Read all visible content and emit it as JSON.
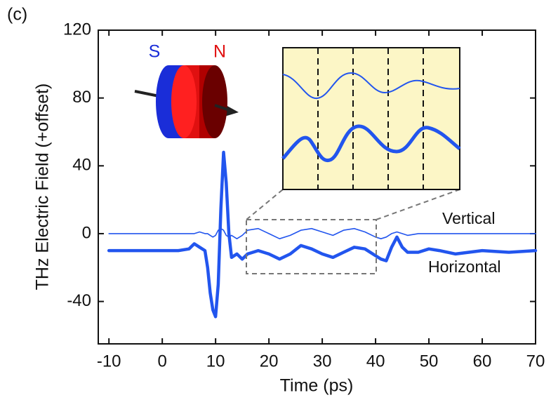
{
  "chart_data": {
    "type": "line",
    "panel_label": "(c)",
    "x_label": "Time (ps)",
    "y_label": "THz Electric Field (+offset)",
    "magnet_labels": [
      "S",
      "N"
    ],
    "x": [
      -10,
      -5,
      0,
      3,
      5,
      6,
      7,
      8,
      8.5,
      9,
      9.5,
      10,
      10.5,
      11,
      11.5,
      12,
      12.5,
      13,
      14,
      15,
      16,
      18,
      20,
      22,
      24,
      26,
      28,
      30,
      32,
      34,
      36,
      38,
      40,
      41,
      42,
      43,
      44,
      45,
      46,
      48,
      50,
      52,
      55,
      60,
      65,
      70
    ],
    "series": [
      {
        "name": "Vertical",
        "color": "#2255ee",
        "width": 1.6,
        "values": [
          0,
          0,
          0,
          0,
          0,
          0,
          1,
          0,
          0,
          -1,
          -2,
          -1,
          2,
          3,
          2,
          -1,
          -2,
          -1,
          -3,
          -1,
          2,
          3,
          0,
          -3,
          -1,
          2,
          3,
          1,
          -1,
          2,
          3,
          1,
          -2,
          -3,
          -2,
          0,
          1,
          0,
          -1,
          0,
          0,
          0,
          0,
          0,
          0,
          0
        ]
      },
      {
        "name": "Horizontal",
        "color": "#2255ee",
        "width": 4.5,
        "values": [
          -10,
          -10,
          -10,
          -10,
          -9,
          -6,
          -8,
          -10,
          -20,
          -35,
          -45,
          -49,
          -30,
          15,
          48,
          30,
          0,
          -14,
          -12,
          -15,
          -12,
          -10,
          -12,
          -15,
          -12,
          -7,
          -9,
          -12,
          -14,
          -11,
          -8,
          -9,
          -13,
          -15,
          -16,
          -8,
          -2,
          -8,
          -11,
          -11,
          -9,
          -10,
          -12,
          -10,
          -11,
          -10
        ]
      }
    ],
    "xlim": [
      -12,
      70
    ],
    "ylim": [
      -65,
      120
    ],
    "xticks": [
      -10,
      0,
      10,
      20,
      30,
      40,
      50,
      60,
      70
    ],
    "yticks": [
      -40,
      0,
      40,
      80,
      120
    ]
  }
}
